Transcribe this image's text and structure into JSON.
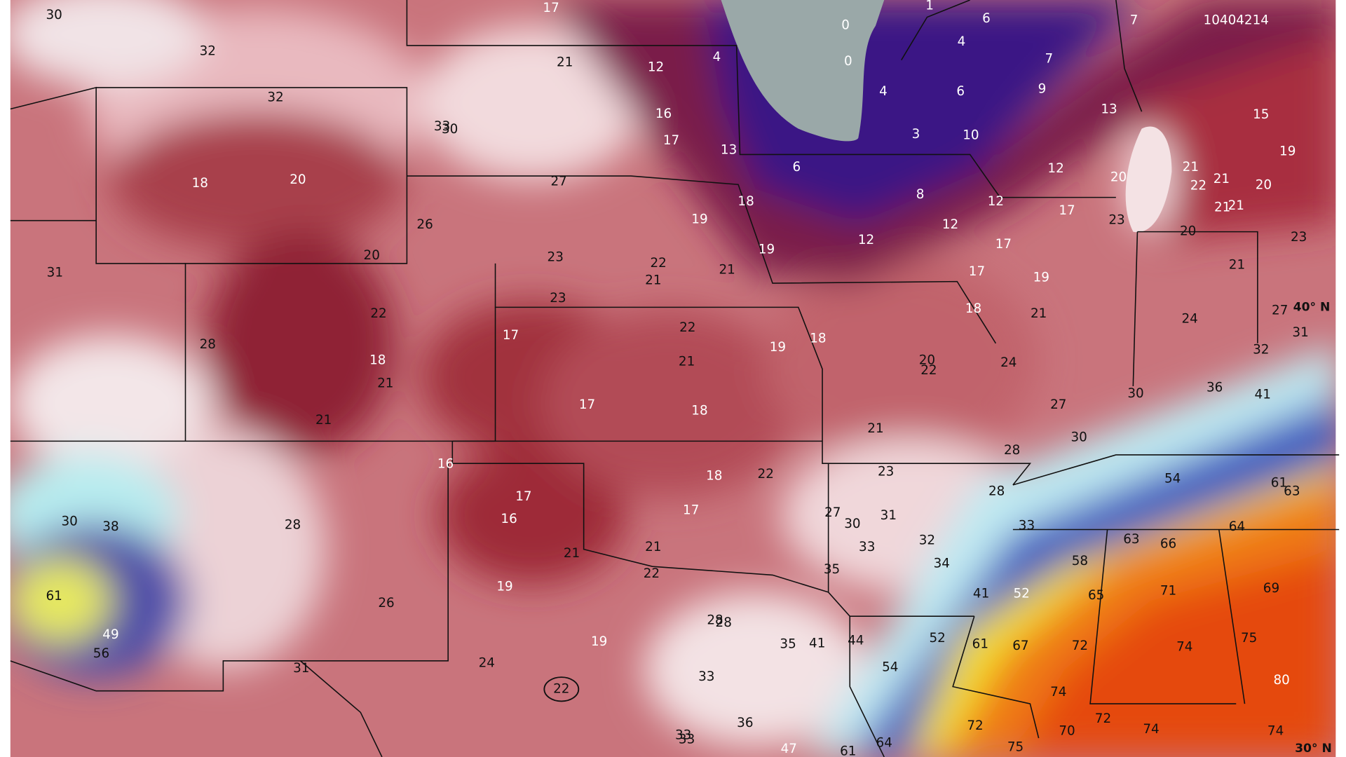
{
  "map_id": "10404214",
  "latitude_labels": [
    "40° N",
    "30° N"
  ],
  "labels": [
    30,
    32,
    32,
    17,
    21,
    12,
    4,
    0,
    0,
    1,
    6,
    7,
    4,
    7,
    4,
    6,
    9,
    13,
    15,
    16,
    17,
    13,
    3,
    10,
    33,
    30,
    18,
    20,
    6,
    12,
    20,
    21,
    19,
    22,
    21,
    20,
    27,
    18,
    8,
    12,
    17,
    21,
    21,
    23,
    26,
    19,
    12,
    12,
    20,
    23,
    17,
    31,
    20,
    23,
    22,
    21,
    21,
    19,
    17,
    19,
    21,
    23,
    27,
    22,
    22,
    18,
    21,
    24,
    31,
    28,
    18,
    17,
    19,
    18,
    32,
    21,
    20,
    22,
    24,
    21,
    17,
    18,
    27,
    36,
    30,
    41,
    21,
    21,
    30,
    28,
    16,
    18,
    22,
    23,
    54,
    61,
    63,
    17,
    28,
    17,
    27,
    30,
    31,
    30,
    38,
    28,
    16,
    33,
    64,
    63,
    66,
    21,
    33,
    32,
    21,
    58,
    34,
    22,
    35,
    19,
    61,
    71,
    69,
    41,
    52,
    65,
    26,
    28,
    28,
    49,
    75,
    44,
    52,
    35,
    41,
    19,
    61,
    67,
    72,
    74,
    56,
    24,
    54,
    31,
    33,
    80,
    22,
    74,
    72,
    36,
    72,
    70,
    74,
    74,
    33,
    33,
    47,
    61,
    64,
    75
  ]
}
